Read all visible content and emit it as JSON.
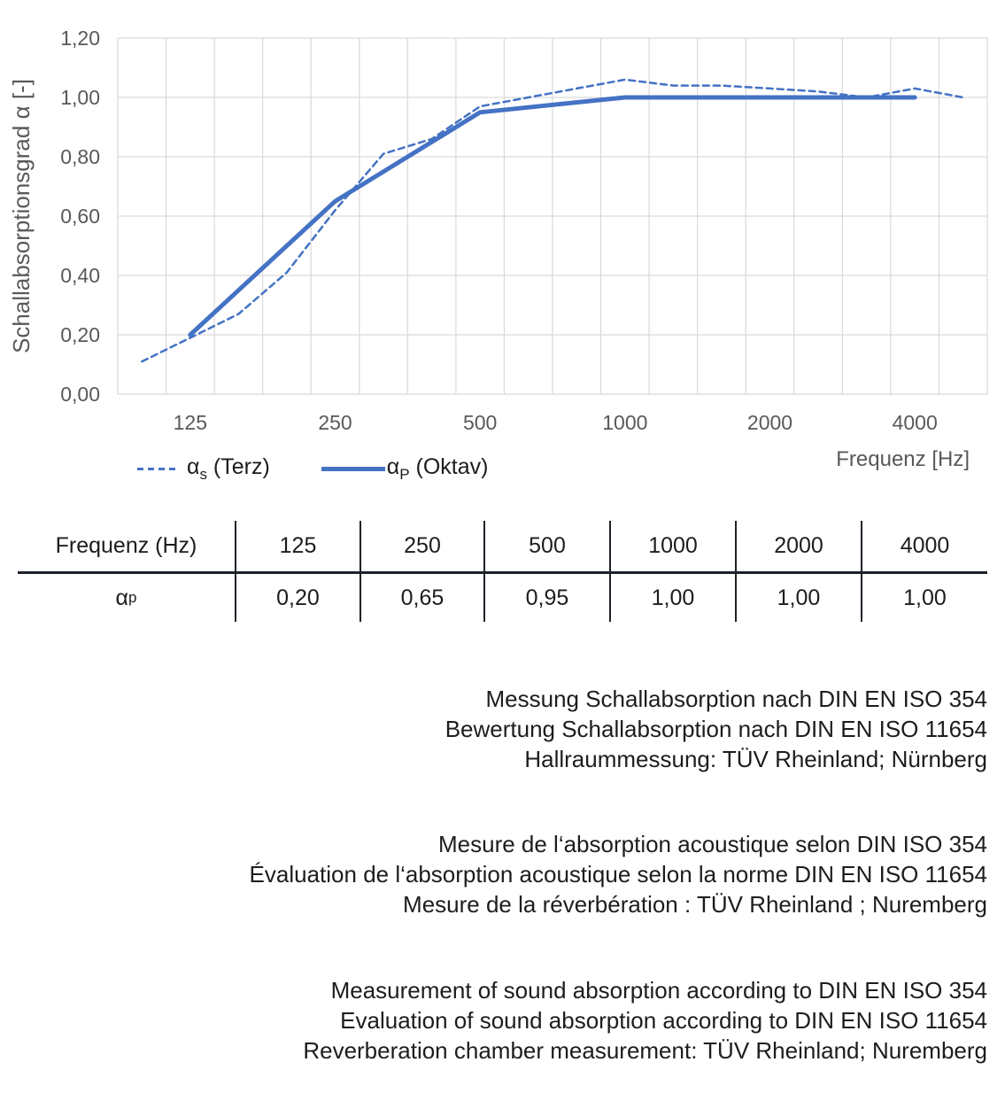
{
  "chart_data": {
    "type": "line",
    "title": "",
    "ylabel": "Schallabsorptionsgrad α [-]",
    "xlabel": "Frequenz [Hz]",
    "x_scale": "logarithmic (third-octave categories)",
    "grid": true,
    "legend_position": "bottom-left",
    "ylim": [
      0,
      1.2
    ],
    "categories": [
      100,
      125,
      160,
      200,
      250,
      315,
      400,
      500,
      630,
      800,
      1000,
      1250,
      1600,
      2000,
      2500,
      3150,
      4000,
      5000
    ],
    "y_tick_values": [
      0,
      0.2,
      0.4,
      0.6,
      0.8,
      1.0,
      1.2
    ],
    "y_tick_labels": [
      "0,00",
      "0,20",
      "0,40",
      "0,60",
      "0,80",
      "1,00",
      "1,20"
    ],
    "x_tick_values": [
      125,
      250,
      500,
      1000,
      2000,
      4000
    ],
    "x_tick_labels": [
      "125",
      "250",
      "500",
      "1000",
      "2000",
      "4000"
    ],
    "series": [
      {
        "name": "αs (Terz)",
        "style": "solidref_dashed",
        "line": "dashed",
        "x": [
          100,
          125,
          160,
          200,
          250,
          315,
          400,
          500,
          630,
          800,
          1000,
          1250,
          1600,
          2000,
          2500,
          3150,
          4000,
          5000
        ],
        "values": [
          0.11,
          0.19,
          0.27,
          0.41,
          0.62,
          0.81,
          0.86,
          0.97,
          1.0,
          1.03,
          1.06,
          1.04,
          1.04,
          1.03,
          1.02,
          1.0,
          1.03,
          1.0
        ]
      },
      {
        "name": "αP (Oktav)",
        "style": "solid",
        "line": "solid",
        "x": [
          125,
          250,
          500,
          1000,
          2000,
          4000
        ],
        "values": [
          0.2,
          0.65,
          0.95,
          1.0,
          1.0,
          1.0
        ]
      }
    ]
  },
  "legend": {
    "items": [
      {
        "pre": "α",
        "sub": "s",
        "post": " (Terz)",
        "line": "dashed"
      },
      {
        "pre": "α",
        "sub": "P",
        "post": " (Oktav)",
        "line": "solid"
      }
    ]
  },
  "table": {
    "header_label": "Frequenz (Hz)",
    "row_label_pre": "α",
    "row_label_sub": "p",
    "frequencies": [
      "125",
      "250",
      "500",
      "1000",
      "2000",
      "4000"
    ],
    "values": [
      "0,20",
      "0,65",
      "0,95",
      "1,00",
      "1,00",
      "1,00"
    ]
  },
  "notes": {
    "de": [
      "Messung Schallabsorption nach DIN EN ISO 354",
      "Bewertung Schallabsorption nach DIN EN ISO 11654",
      "Hallraummessung: TÜV Rheinland; Nürnberg"
    ],
    "fr": [
      "Mesure de l‘absorption acoustique selon DIN ISO 354",
      "Évaluation de l‘absorption acoustique selon la norme DIN EN ISO 11654",
      "Mesure de la réverbération : TÜV Rheinland ; Nuremberg"
    ],
    "en": [
      "Measurement of sound absorption according to DIN EN ISO 354",
      "Evaluation of sound absorption according to DIN EN ISO 11654",
      "Reverberation chamber measurement: TÜV Rheinland; Nuremberg"
    ]
  },
  "colors": {
    "series_blue": "#4472C4",
    "grid": "#D9D9D9",
    "axis_text": "#595959",
    "text": "#1D1D1B",
    "table_line": "#1D2129"
  }
}
